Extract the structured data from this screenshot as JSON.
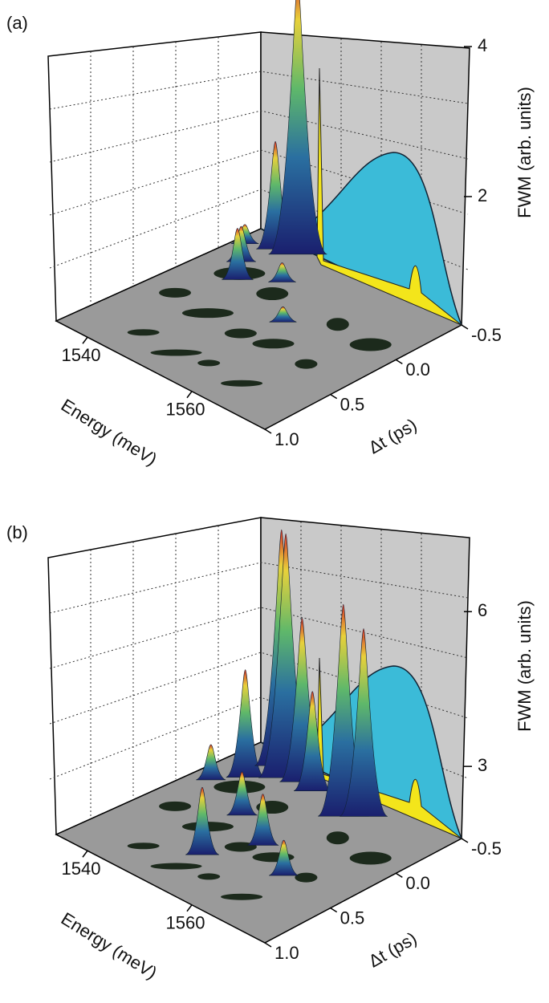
{
  "chart_data": [
    {
      "type": "surface3d",
      "panel_label": "(a)",
      "xlabel": "Energy (meV)",
      "ylabel": "Δt (ps)",
      "zlabel": "FWM (arb. units)",
      "xlim": [
        1534,
        1574
      ],
      "xticks": [
        1540,
        1560
      ],
      "ylim": [
        -0.5,
        1.0
      ],
      "yticks": [
        -0.5,
        {
          "value": 0,
          "label": "0.0"
        },
        0.5,
        {
          "value": 1,
          "label": "1.0"
        }
      ],
      "zlim": [
        0,
        4
      ],
      "zticks": [
        2,
        4
      ]
    },
    {
      "type": "surface3d",
      "panel_label": "(b)",
      "xlabel": "Energy (meV)",
      "ylabel": "Δt (ps)",
      "zlabel": "FWM (arb. units)",
      "xlim": [
        1534,
        1574
      ],
      "xticks": [
        1540,
        1560
      ],
      "ylim": [
        -0.5,
        1.0
      ],
      "yticks": [
        -0.5,
        {
          "value": 0,
          "label": "0.0"
        },
        0.5,
        {
          "value": 1,
          "label": "1.0"
        }
      ],
      "zlim": [
        0,
        7
      ],
      "zticks": [
        3,
        6
      ]
    }
  ]
}
